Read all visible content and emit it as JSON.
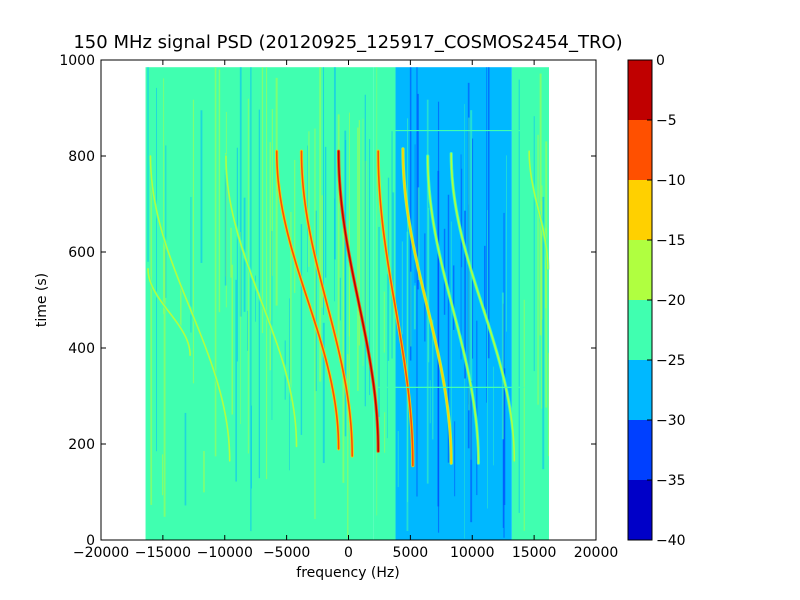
{
  "chart_data": {
    "type": "heatmap",
    "title": "150 MHz signal PSD (20120925_125917_COSMOS2454_TRO)",
    "xlabel": "frequency (Hz)",
    "ylabel": "time (s)",
    "xlim": [
      -20000,
      20000
    ],
    "ylim": [
      0,
      1000
    ],
    "x_ticks": [
      -20000,
      -15000,
      -10000,
      -5000,
      0,
      5000,
      10000,
      15000,
      20000
    ],
    "y_ticks": [
      0,
      200,
      400,
      600,
      800,
      1000
    ],
    "x_tick_labels": [
      "−20000",
      "−15000",
      "−10000",
      "−5000",
      "0",
      "5000",
      "10000",
      "15000",
      "20000"
    ],
    "y_tick_labels": [
      "0",
      "200",
      "400",
      "600",
      "800",
      "1000"
    ],
    "data_extent": {
      "frequency": [
        -16400,
        16200
      ],
      "time": [
        0,
        985
      ]
    },
    "background_regions": [
      {
        "f_min": -16400,
        "f_max": 2000,
        "level": -22.5
      },
      {
        "f_min": 2000,
        "f_max": 3800,
        "level": -25
      },
      {
        "f_min": 3800,
        "f_max": 13200,
        "level": -27.5
      },
      {
        "f_min": 13200,
        "f_max": 16200,
        "level": -25
      }
    ],
    "horizontal_lines": [
      {
        "time": 853,
        "f_min": 3400,
        "f_max": 14800,
        "level": -22.5
      },
      {
        "time": 318,
        "f_min": 2400,
        "f_max": 14200,
        "level": -22.5
      }
    ],
    "traces": [
      {
        "f_start": -16200,
        "t_start": 565,
        "f_end": -12800,
        "t_end": 385,
        "level": -17.5
      },
      {
        "f_start": -16000,
        "t_start": 800,
        "f_end": -9600,
        "t_end": 165,
        "level": -17.5
      },
      {
        "f_start": -9900,
        "t_start": 800,
        "f_end": -4200,
        "t_end": 195,
        "level": -17.5
      },
      {
        "f_start": -5800,
        "t_start": 810,
        "f_end": -800,
        "t_end": 190,
        "level": -7.5
      },
      {
        "f_start": -3800,
        "t_start": 810,
        "f_end": 300,
        "t_end": 175,
        "level": -7.5
      },
      {
        "f_start": -800,
        "t_start": 810,
        "f_end": 2400,
        "t_end": 185,
        "level": -2.5
      },
      {
        "f_start": 2400,
        "t_start": 810,
        "f_end": 5200,
        "t_end": 155,
        "level": -7.5
      },
      {
        "f_start": 4400,
        "t_start": 815,
        "f_end": 8300,
        "t_end": 160,
        "level": -12.5
      },
      {
        "f_start": 6400,
        "t_start": 800,
        "f_end": 10500,
        "t_end": 160,
        "level": -17.5
      },
      {
        "f_start": 8300,
        "t_start": 805,
        "f_end": 13400,
        "t_end": 165,
        "level": -17.5
      },
      {
        "f_start": 14600,
        "t_start": 810,
        "f_end": 16100,
        "t_end": 565,
        "level": -17.5
      }
    ],
    "colorbar": {
      "min": -40,
      "max": 0,
      "ticks": [
        0,
        -5,
        -10,
        -15,
        -20,
        -25,
        -30,
        -35,
        -40
      ],
      "tick_labels": [
        "0",
        "−5",
        "−10",
        "−15",
        "−20",
        "−25",
        "−30",
        "−35",
        "−40"
      ],
      "bins": [
        {
          "from": -40,
          "to": -35,
          "color": "#0000c8"
        },
        {
          "from": -35,
          "to": -30,
          "color": "#0040ff"
        },
        {
          "from": -30,
          "to": -25,
          "color": "#00b8ff"
        },
        {
          "from": -25,
          "to": -20,
          "color": "#40ffb0"
        },
        {
          "from": -20,
          "to": -15,
          "color": "#b0ff40"
        },
        {
          "from": -15,
          "to": -10,
          "color": "#ffd000"
        },
        {
          "from": -10,
          "to": -5,
          "color": "#ff5000"
        },
        {
          "from": -5,
          "to": 0,
          "color": "#c00000"
        }
      ]
    }
  }
}
